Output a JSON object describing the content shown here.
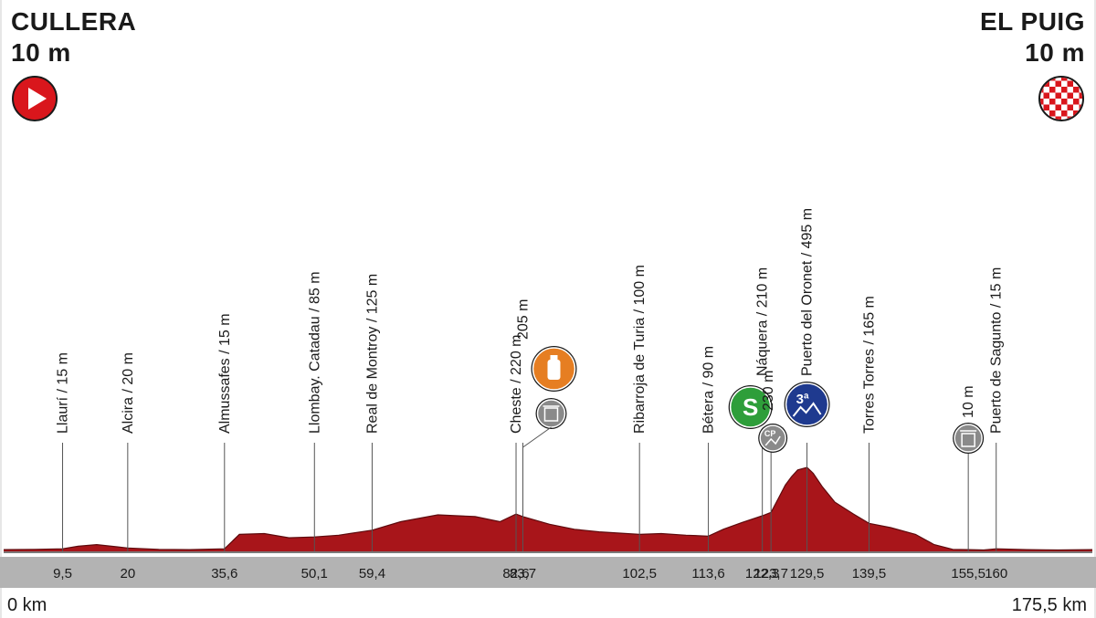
{
  "start": {
    "name": "CULLERA",
    "altitude": "10 m",
    "icon": "play-icon",
    "color": "#d9161c"
  },
  "finish": {
    "name": "EL PUIG",
    "altitude": "10 m",
    "icon": "checkered-flag-icon",
    "color": "#d9161c"
  },
  "chart_data": {
    "type": "area",
    "title": "",
    "xlabel": "",
    "ylabel": "",
    "x_start_label": "0 km",
    "x_end_label": "175,5 km",
    "xlim": [
      0,
      175.5
    ],
    "ylim": [
      0,
      500
    ],
    "fill_color": "#a8151a",
    "profile": {
      "x": [
        0,
        5,
        9.5,
        12,
        15,
        20,
        25,
        30,
        35.6,
        38,
        42,
        46,
        50.1,
        54,
        59.4,
        64,
        70,
        76,
        80,
        82.6,
        83.7,
        88,
        92,
        96,
        102.5,
        106,
        110,
        113.6,
        116,
        119,
        122.3,
        123.7,
        125,
        126,
        127,
        128,
        129.5,
        130.5,
        132,
        134,
        137,
        139.5,
        143,
        147,
        150,
        153,
        155.5,
        158,
        160,
        165,
        170,
        175.5
      ],
      "y": [
        10,
        12,
        15,
        30,
        40,
        20,
        12,
        10,
        15,
        100,
        105,
        80,
        85,
        95,
        125,
        175,
        215,
        205,
        175,
        220,
        205,
        160,
        130,
        115,
        100,
        105,
        95,
        90,
        130,
        170,
        210,
        230,
        320,
        390,
        440,
        480,
        495,
        460,
        380,
        290,
        220,
        165,
        140,
        100,
        40,
        12,
        10,
        8,
        15,
        10,
        8,
        10
      ]
    },
    "waypoints": [
      {
        "km": "9,5",
        "x": 9.5,
        "label": "Llaurí / 15 m"
      },
      {
        "km": "20",
        "x": 20,
        "label": "Alcira / 20 m"
      },
      {
        "km": "35,6",
        "x": 35.6,
        "label": "Almussafes / 15 m"
      },
      {
        "km": "50,1",
        "x": 50.1,
        "label": "Llombay. Catadau / 85 m"
      },
      {
        "km": "59,4",
        "x": 59.4,
        "label": "Real de Montroy / 125 m"
      },
      {
        "km": "82,6",
        "x": 82.6,
        "label": "Cheste / 220 m"
      },
      {
        "km": "83,7",
        "x": 83.7,
        "label": "205 m",
        "badges": [
          "feed-zone-icon",
          "waste-zone-icon"
        ]
      },
      {
        "km": "102,5",
        "x": 102.5,
        "label": "Ribarroja de Turia / 100 m"
      },
      {
        "km": "113,6",
        "x": 113.6,
        "label": "Bétera / 90 m"
      },
      {
        "km": "122,3",
        "x": 122.3,
        "label": "Náquera / 210 m",
        "badges": [
          "sprint-icon"
        ]
      },
      {
        "km": "123,7",
        "x": 123.7,
        "label": "230 m",
        "badges": [
          "cp-icon"
        ]
      },
      {
        "km": "129,5",
        "x": 129.5,
        "label": "Puerto del Oronet / 495 m",
        "badges": [
          "climb-cat3-icon"
        ]
      },
      {
        "km": "139,5",
        "x": 139.5,
        "label": "Torres Torres / 165 m"
      },
      {
        "km": "155,5",
        "x": 155.5,
        "label": "10 m",
        "badges": [
          "waste-zone-icon"
        ]
      },
      {
        "km": "160",
        "x": 160,
        "label": "Puerto de Sagunto / 15 m"
      }
    ],
    "badge_text": {
      "sprint": "S",
      "cp": "CP",
      "cat3": "3ª"
    },
    "colors": {
      "sprint": "#2e9e3a",
      "feed": "#e67e22",
      "waste": "#8a8a8a",
      "cat3": "#1f3a8f",
      "axis_band": "#b3b3b3"
    }
  }
}
